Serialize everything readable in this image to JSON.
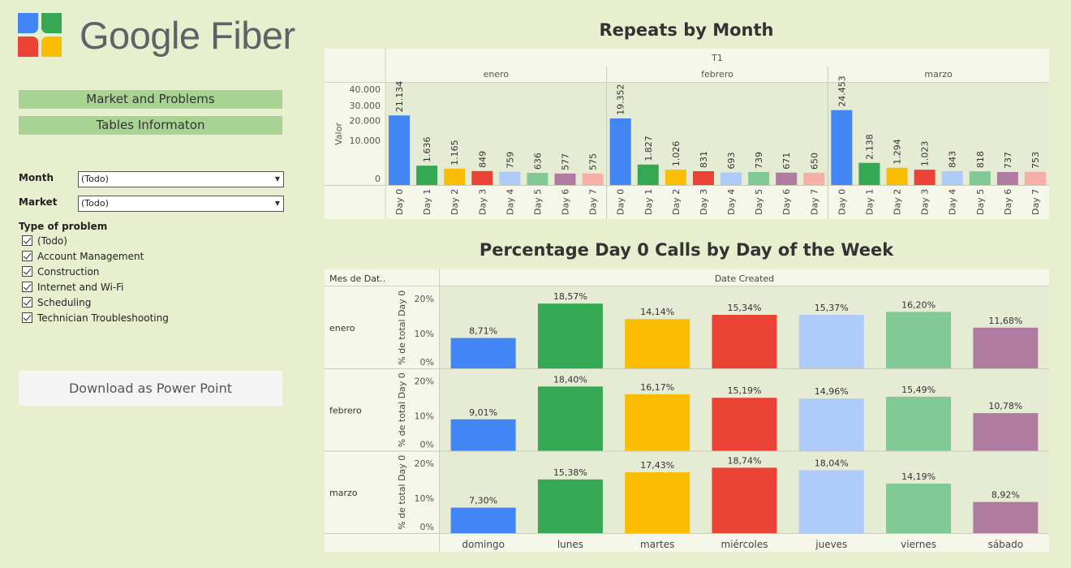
{
  "brand": {
    "name": "Google Fiber"
  },
  "nav": {
    "market_button": "Market and Problems",
    "tables_button": "Tables Informaton"
  },
  "filters": {
    "month_label": "Month",
    "month_value": "(Todo)",
    "market_label": "Market",
    "market_value": "(Todo)",
    "problem_label": "Type of problem",
    "problems": [
      "(Todo)",
      "Account Management",
      "Construction",
      "Internet and Wi-Fi",
      "Scheduling",
      "Technician Troubleshooting"
    ]
  },
  "download": {
    "label": "Download as Power Point"
  },
  "colors": {
    "page_bg": "#e7efce",
    "days": [
      "#4285f4",
      "#34a853",
      "#fbbc04",
      "#ea4335",
      "#aecbfa",
      "#81c995",
      "#b07aa1",
      "#f6aea9"
    ],
    "weekdays": [
      "#4285f4",
      "#34a853",
      "#fbbc04",
      "#ea4335",
      "#aecbfa",
      "#81c995",
      "#b07aa1"
    ]
  },
  "chart_data": [
    {
      "type": "bar",
      "title": "Repeats by Month",
      "header": "T1",
      "panels": [
        "enero",
        "febrero",
        "marzo"
      ],
      "categories": [
        "Day 0",
        "Day 1",
        "Day 2",
        "Day 3",
        "Day 4",
        "Day 5",
        "Day 6",
        "Day 7"
      ],
      "series": [
        {
          "values": [
            21134,
            1636,
            1165,
            849,
            759,
            636,
            577,
            575
          ]
        },
        {
          "values": [
            19352,
            1827,
            1026,
            831,
            693,
            739,
            671,
            650
          ]
        },
        {
          "values": [
            24453,
            2138,
            1294,
            1023,
            843,
            818,
            737,
            753
          ]
        }
      ],
      "labels": [
        [
          "21.134",
          "1.636",
          "1.165",
          "849",
          "759",
          "636",
          "577",
          "575"
        ],
        [
          "19.352",
          "1.827",
          "1.026",
          "831",
          "693",
          "739",
          "671",
          "650"
        ],
        [
          "24.453",
          "2.138",
          "1.294",
          "1.023",
          "843",
          "818",
          "737",
          "753"
        ]
      ],
      "ylabel": "Valor",
      "yticks": [
        "0",
        "10.000",
        "20.000",
        "30.000",
        "40.000"
      ],
      "yscale": "sqrt",
      "ylim": [
        0,
        40000
      ],
      "grid": false
    },
    {
      "type": "bar",
      "title": "Percentage Day 0 Calls by Day of the Week",
      "row_header": "Mes de Dat..",
      "col_header": "Date Created",
      "categories": [
        "domingo",
        "lunes",
        "martes",
        "miércoles",
        "jueves",
        "viernes",
        "sábado"
      ],
      "rows": [
        "enero",
        "febrero",
        "marzo"
      ],
      "series": [
        {
          "values": [
            8.71,
            18.57,
            14.14,
            15.34,
            15.37,
            16.2,
            11.68
          ]
        },
        {
          "values": [
            9.01,
            18.4,
            16.17,
            15.19,
            14.96,
            15.49,
            10.78
          ]
        },
        {
          "values": [
            7.3,
            15.38,
            17.43,
            18.74,
            18.04,
            14.19,
            8.92
          ]
        }
      ],
      "labels": [
        [
          "8,71%",
          "18,57%",
          "14,14%",
          "15,34%",
          "15,37%",
          "16,20%",
          "11,68%"
        ],
        [
          "9,01%",
          "18,40%",
          "16,17%",
          "15,19%",
          "14,96%",
          "15,49%",
          "10,78%"
        ],
        [
          "7,30%",
          "15,38%",
          "17,43%",
          "18,74%",
          "18,04%",
          "14,19%",
          "8,92%"
        ]
      ],
      "ylabel": "% de total Day 0",
      "yticks": [
        "0%",
        "10%",
        "20%"
      ],
      "ylim": [
        0,
        20
      ],
      "grid": false
    }
  ]
}
